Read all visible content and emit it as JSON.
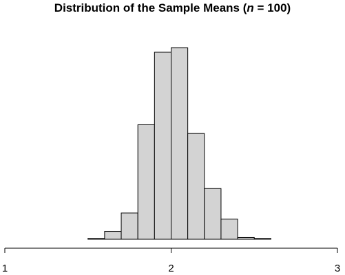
{
  "chart_data": {
    "type": "bar",
    "title_prefix": "Distribution of the Sample Means (",
    "title_var": "n",
    "title_suffix": " = 100)",
    "xlim": [
      1,
      3
    ],
    "ticks": [
      "1",
      "2",
      "3"
    ],
    "tick_values": [
      1,
      2,
      3
    ],
    "bin_edges": [
      1.5,
      1.6,
      1.7,
      1.8,
      1.9,
      2.0,
      2.1,
      2.2,
      2.3,
      2.4,
      2.5,
      2.6
    ],
    "values": [
      1,
      9,
      30,
      131,
      214,
      219,
      121,
      58,
      23,
      2,
      1
    ],
    "ylim": [
      0,
      225
    ],
    "bar_fill": "#d3d3d3",
    "bar_stroke": "#000000",
    "grid": false,
    "y_axis_shown": false
  }
}
